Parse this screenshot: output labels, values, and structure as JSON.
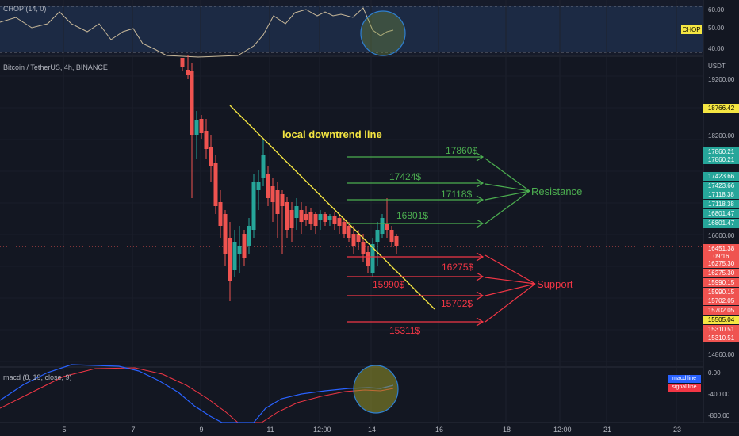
{
  "chop": {
    "title": "CHOP (14, 0)",
    "badge": "CHOP",
    "ticks": [
      "60.00",
      "50.00",
      "40.00"
    ]
  },
  "price": {
    "symbol": "Bitcoin / TetherUS, 4h, BINANCE",
    "currency": "USDT",
    "ticks": [
      "19200.00",
      "18200.00",
      "16600.00",
      "14860.00"
    ],
    "tags": [
      {
        "text": "18766.42",
        "color": "#f5e642",
        "text_color": "#000000"
      },
      {
        "text": "17860.21",
        "color": "#26a69a"
      },
      {
        "text": "17860.21",
        "color": "#26a69a"
      },
      {
        "text": "17423.66",
        "color": "#26a69a"
      },
      {
        "text": "17423.66",
        "color": "#26a69a"
      },
      {
        "text": "17118.38",
        "color": "#26a69a"
      },
      {
        "text": "17118.38",
        "color": "#26a69a"
      },
      {
        "text": "16801.47",
        "color": "#26a69a"
      },
      {
        "text": "16801.47",
        "color": "#26a69a"
      },
      {
        "text": "16451.38",
        "color": "#ef5350"
      },
      {
        "text": "09:16",
        "color": "#ef5350"
      },
      {
        "text": "16275.30",
        "color": "#ef5350"
      },
      {
        "text": "16275.30",
        "color": "#ef5350"
      },
      {
        "text": "15990.15",
        "color": "#ef5350"
      },
      {
        "text": "15990.15",
        "color": "#ef5350"
      },
      {
        "text": "15702.05",
        "color": "#ef5350"
      },
      {
        "text": "15702.05",
        "color": "#ef5350"
      },
      {
        "text": "15505.04",
        "color": "#f5e642",
        "text_color": "#000000"
      },
      {
        "text": "15310.51",
        "color": "#ef5350"
      },
      {
        "text": "15310.51",
        "color": "#ef5350"
      }
    ]
  },
  "annotations": {
    "downtrend": "local downtrend line",
    "resistance_label": "Resistance",
    "support_label": "Support",
    "resistance": [
      "17860$",
      "17424$",
      "17118$",
      "16801$"
    ],
    "support": [
      "16275$",
      "15990$",
      "15702$",
      "15311$"
    ]
  },
  "macd": {
    "title": "macd (8, 19, close, 9)",
    "ticks": [
      "0.00",
      "-400.00",
      "-800.00"
    ],
    "legend": [
      "macd line",
      "signal line"
    ]
  },
  "time_axis": [
    "5",
    "7",
    "9",
    "11",
    "12:00",
    "14",
    "16",
    "18",
    "12:00",
    "21",
    "23"
  ],
  "colors": {
    "bg": "#131722",
    "up": "#26a69a",
    "down": "#ef5350",
    "trend": "#f5e642",
    "resistance": "#4caf50",
    "support": "#f23645",
    "macd": "#2962ff",
    "signal": "#f23645",
    "chop": "#c9b99a"
  }
}
